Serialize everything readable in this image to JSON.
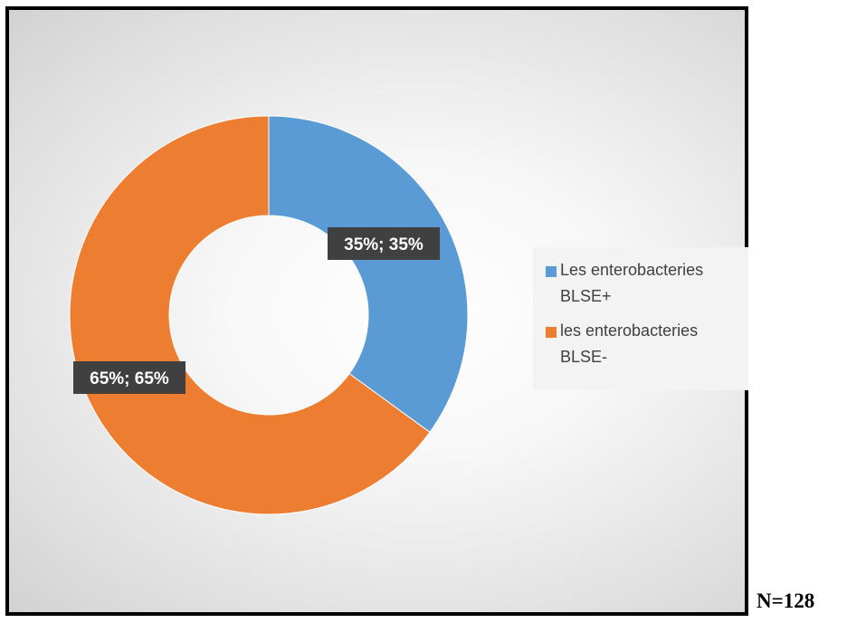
{
  "chart_data": {
    "type": "pie",
    "variant": "donut",
    "title": "",
    "categories": [
      "Les enterobacteries BLSE+",
      "les enterobacteries BLSE-"
    ],
    "values": [
      35,
      65
    ],
    "colors": [
      "#5b9bd5",
      "#ed7d31"
    ],
    "data_labels": [
      "35%; 35%",
      "65%; 65%"
    ],
    "legend": {
      "placement": "right",
      "entries": [
        {
          "label": "Les enterobacteries\nBLSE+",
          "color": "#5b9bd5"
        },
        {
          "label": "les enterobacteries\nBLSE-",
          "color": "#ed7d31"
        }
      ]
    }
  },
  "footnote": "N=128"
}
